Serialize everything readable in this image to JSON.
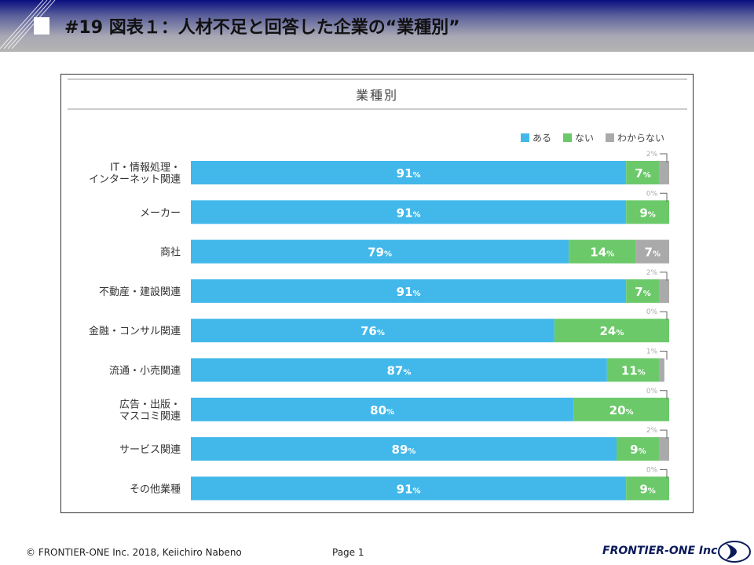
{
  "header": {
    "title": "#19 図表１：人材不足と回答した企業の“業種別”"
  },
  "footer": {
    "copyright": "© FRONTIER-ONE Inc. 2018,  Keiichiro  Nabeno",
    "page": "Page 1",
    "logo_text": "FRONTIER-ONE Inc."
  },
  "chart_data": {
    "type": "bar",
    "stacked": true,
    "orientation": "horizontal",
    "title": "業種別",
    "xlim": [
      0,
      100
    ],
    "unit": "%",
    "legend_position": "top-right",
    "categories": [
      [
        "IT・情報処理・",
        "インターネット関連"
      ],
      [
        "メーカー"
      ],
      [
        "商社"
      ],
      [
        "不動産・建設関連"
      ],
      [
        "金融・コンサル関連"
      ],
      [
        "流通・小売関連"
      ],
      [
        "広告・出版・",
        "マスコミ関連"
      ],
      [
        "サービス関連"
      ],
      [
        "その他業種"
      ]
    ],
    "series": [
      {
        "name": "ある",
        "color": "#42b8ea",
        "values": [
          91,
          91,
          79,
          91,
          76,
          87,
          80,
          89,
          91
        ]
      },
      {
        "name": "ない",
        "color": "#6cc96a",
        "values": [
          7,
          9,
          14,
          7,
          24,
          11,
          20,
          9,
          9
        ]
      },
      {
        "name": "わからない",
        "color": "#aaaaaa",
        "values": [
          2,
          0,
          7,
          2,
          0,
          1,
          0,
          2,
          0
        ]
      }
    ]
  }
}
